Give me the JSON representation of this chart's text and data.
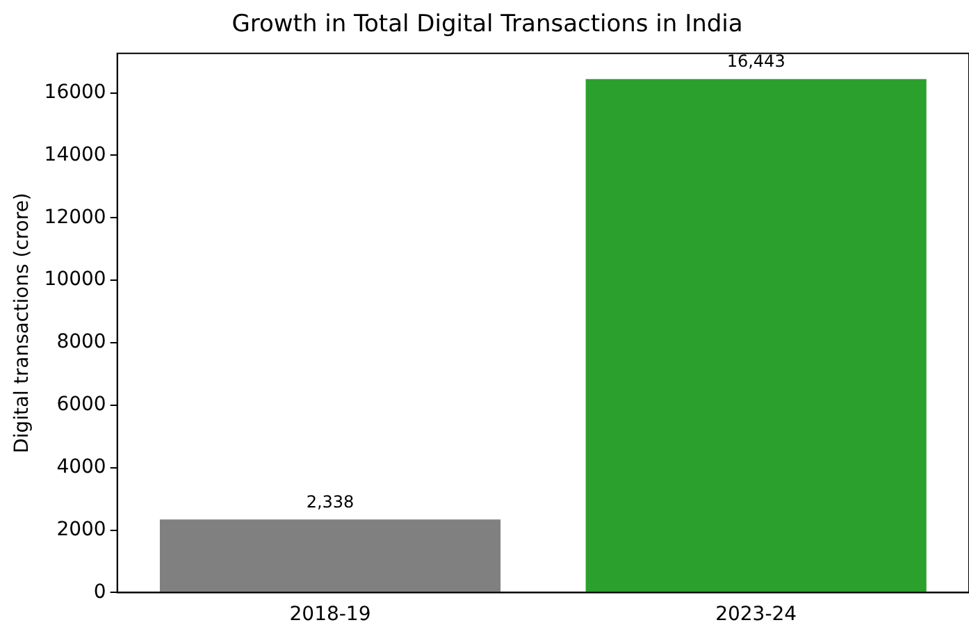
{
  "chart_data": {
    "type": "bar",
    "title": "Growth in Total Digital Transactions in India",
    "ylabel": "Digital transactions (crore)",
    "categories": [
      "2018-19",
      "2023-24"
    ],
    "values": [
      2338,
      16443
    ],
    "colors": [
      "#808080",
      "#2ca02c"
    ],
    "value_labels": [
      "2,338",
      "16,443"
    ],
    "ylim": [
      0,
      17265
    ],
    "yticks": [
      0,
      2000,
      4000,
      6000,
      8000,
      10000,
      12000,
      14000,
      16000
    ],
    "grid": false,
    "legend": false
  }
}
